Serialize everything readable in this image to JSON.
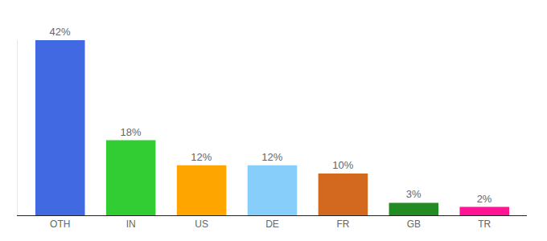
{
  "chart_data": {
    "type": "bar",
    "categories": [
      "OTH",
      "IN",
      "US",
      "DE",
      "FR",
      "GB",
      "TR"
    ],
    "values": [
      42,
      18,
      12,
      12,
      10,
      3,
      2
    ],
    "value_labels": [
      "42%",
      "18%",
      "12%",
      "12%",
      "10%",
      "3%",
      "2%"
    ],
    "colors": [
      "#4169e1",
      "#32cd32",
      "#ffa500",
      "#87cefa",
      "#d2691e",
      "#228b22",
      "#ff1493"
    ],
    "ylim": [
      0,
      42
    ],
    "data_labels": true,
    "tick_labels": "x",
    "grid": false
  }
}
